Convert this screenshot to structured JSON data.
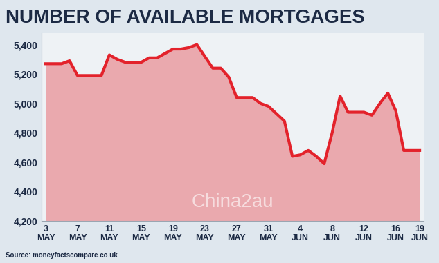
{
  "chart_data": {
    "type": "line",
    "title": "NUMBER OF AVAILABLE MORTGAGES",
    "source": "Source: moneyfactscompare.co.uk",
    "watermark": "China2au",
    "categories": [
      "3 MAY",
      null,
      null,
      null,
      "7 MAY",
      null,
      null,
      null,
      "11 MAY",
      null,
      null,
      null,
      "15 MAY",
      null,
      null,
      null,
      "19 MAY",
      null,
      null,
      null,
      "23 MAY",
      null,
      null,
      null,
      "27 MAY",
      null,
      null,
      null,
      "31 MAY",
      null,
      null,
      null,
      "4 JUN",
      null,
      null,
      null,
      "8 JUN",
      null,
      null,
      null,
      "12 JUN",
      null,
      null,
      null,
      "16 JUN",
      null,
      null,
      "19 JUN"
    ],
    "values": [
      5270,
      5270,
      5270,
      5290,
      5190,
      5190,
      5190,
      5190,
      5330,
      5300,
      5280,
      5280,
      5280,
      5310,
      5310,
      5340,
      5370,
      5370,
      5380,
      5400,
      5320,
      5240,
      5240,
      5180,
      5040,
      5040,
      5040,
      5000,
      4980,
      4930,
      4880,
      4640,
      4650,
      4680,
      4640,
      4590,
      4800,
      5050,
      4940,
      4940,
      4940,
      4920,
      5000,
      5070,
      4950,
      4680,
      4680,
      4680
    ],
    "color": "#e3222b",
    "ylim": [
      4200,
      5480
    ],
    "yticks": [
      {
        "value": 4200,
        "label": "4,200"
      },
      {
        "value": 4400,
        "label": "4,400"
      },
      {
        "value": 4600,
        "label": "4,600"
      },
      {
        "value": 4800,
        "label": "4,800"
      },
      {
        "value": 5000,
        "label": "5,000"
      },
      {
        "value": 5200,
        "label": "5,200"
      },
      {
        "value": 5400,
        "label": "5,400"
      }
    ],
    "grid": false
  }
}
